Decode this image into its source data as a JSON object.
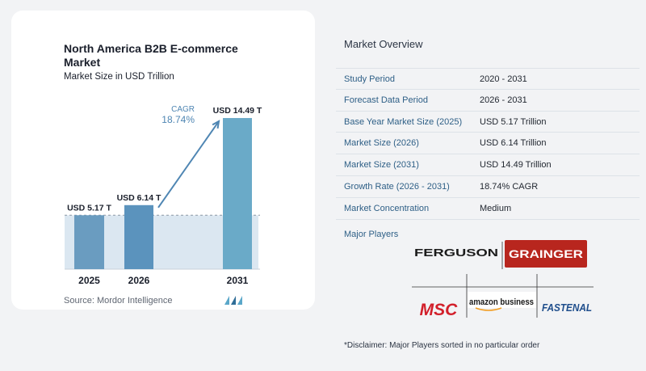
{
  "title": "North America B2B E-commerce Market",
  "subtitle": "Market Size in USD Trillion",
  "source": "Source:  Mordor Intelligence",
  "cagr": {
    "label": "CAGR",
    "value": "18.74%"
  },
  "colors": {
    "bar_2025": "#6a9cc0",
    "bar_2026": "#5b93bd",
    "bar_2031": "#6aaac8",
    "accent": "#4f86b3",
    "fill_band": "#dbe7f1",
    "dashed": "#8b98a5"
  },
  "chart_data": {
    "type": "bar",
    "categories": [
      "2025",
      "2026",
      "2031"
    ],
    "values": [
      5.17,
      6.14,
      14.49
    ],
    "data_labels": [
      "USD 5.17 T",
      "USD 6.14 T",
      "USD 14.49 T"
    ],
    "ylim": [
      0,
      15.5
    ],
    "unit": "USD Trillion",
    "grid": false,
    "reference_line_value": 5.17
  },
  "overview": {
    "title": "Market Overview",
    "rows": [
      {
        "label": "Study Period",
        "value": "2020 - 2031"
      },
      {
        "label": "Forecast Data Period",
        "value": "2026 - 2031"
      },
      {
        "label": "Base Year Market Size (2025)",
        "value": "USD 5.17 Trillion"
      },
      {
        "label": "Market Size (2026)",
        "value": "USD 6.14 Trillion"
      },
      {
        "label": "Market Size (2031)",
        "value": "USD 14.49 Trillion"
      },
      {
        "label": "Growth Rate (2026 - 2031)",
        "value": "18.74% CAGR"
      },
      {
        "label": "Market Concentration",
        "value": "Medium"
      }
    ]
  },
  "players": {
    "title": "Major Players",
    "logos": [
      {
        "name": "FERGUSON",
        "text": "FERGUSON",
        "color": "#1b1b1b"
      },
      {
        "name": "GRAINGER",
        "text": "GRAINGER",
        "color": "#b8261e"
      },
      {
        "name": "MSC",
        "text": "MSC",
        "color": "#d21f2a"
      },
      {
        "name": "amazon business",
        "text": "amazon business",
        "color": "#1a1a1a"
      },
      {
        "name": "FASTENAL",
        "text": "FASTENAL",
        "color": "#1f4e8c"
      }
    ]
  },
  "disclaimer": "*Disclaimer: Major Players sorted in no particular order"
}
